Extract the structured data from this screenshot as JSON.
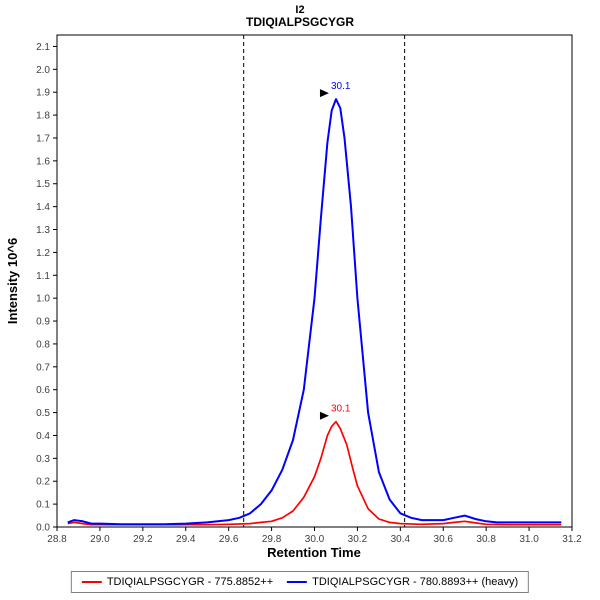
{
  "title": "I2",
  "subtitle": "TDIQIALPSGCYGR",
  "chart_data": {
    "type": "line",
    "title": "I2",
    "subtitle": "TDIQIALPSGCYGR",
    "xlabel": "Retention Time",
    "ylabel": "Intensity 10^6",
    "xlim": [
      28.8,
      31.2
    ],
    "ylim": [
      0,
      2.15
    ],
    "x_ticks": [
      28.8,
      29.0,
      29.2,
      29.4,
      29.6,
      29.8,
      30.0,
      30.2,
      30.4,
      30.6,
      30.8,
      31.0,
      31.2
    ],
    "y_ticks": [
      0.0,
      0.1,
      0.2,
      0.3,
      0.4,
      0.5,
      0.6,
      0.7,
      0.8,
      0.9,
      1.0,
      1.1,
      1.2,
      1.3,
      1.4,
      1.5,
      1.6,
      1.7,
      1.8,
      1.9,
      2.0,
      2.1
    ],
    "grid": false,
    "legend_position": "bottom",
    "integration_boundaries": [
      29.67,
      30.42
    ],
    "series": [
      {
        "name": "TDIQIALPSGCYGR - 775.8852++",
        "color": "#FF0000",
        "x": [
          28.85,
          28.88,
          28.92,
          28.96,
          29.0,
          29.1,
          29.2,
          29.3,
          29.4,
          29.5,
          29.6,
          29.7,
          29.75,
          29.8,
          29.85,
          29.9,
          29.95,
          30.0,
          30.03,
          30.06,
          30.08,
          30.1,
          30.12,
          30.15,
          30.18,
          30.2,
          30.25,
          30.3,
          30.35,
          30.4,
          30.5,
          30.6,
          30.65,
          30.7,
          30.75,
          30.8,
          30.9,
          31.0,
          31.1,
          31.15
        ],
        "y": [
          0.015,
          0.02,
          0.015,
          0.01,
          0.01,
          0.01,
          0.01,
          0.01,
          0.01,
          0.01,
          0.012,
          0.015,
          0.02,
          0.025,
          0.04,
          0.07,
          0.13,
          0.22,
          0.3,
          0.4,
          0.44,
          0.46,
          0.43,
          0.36,
          0.25,
          0.18,
          0.08,
          0.035,
          0.02,
          0.015,
          0.012,
          0.015,
          0.02,
          0.025,
          0.018,
          0.012,
          0.01,
          0.01,
          0.01,
          0.01
        ],
        "annotation": {
          "label": "30.1",
          "x": 30.1,
          "y": 0.46
        }
      },
      {
        "name": "TDIQIALPSGCYGR - 780.8893++ (heavy)",
        "color": "#0000FF",
        "x": [
          28.85,
          28.88,
          28.92,
          28.96,
          29.0,
          29.1,
          29.2,
          29.3,
          29.4,
          29.5,
          29.55,
          29.6,
          29.65,
          29.7,
          29.75,
          29.8,
          29.85,
          29.9,
          29.95,
          30.0,
          30.03,
          30.06,
          30.08,
          30.1,
          30.12,
          30.14,
          30.17,
          30.2,
          30.25,
          30.3,
          30.35,
          30.4,
          30.45,
          30.5,
          30.55,
          30.6,
          30.65,
          30.7,
          30.75,
          30.8,
          30.85,
          30.9,
          31.0,
          31.1,
          31.15
        ],
        "y": [
          0.02,
          0.03,
          0.025,
          0.015,
          0.015,
          0.012,
          0.012,
          0.012,
          0.015,
          0.02,
          0.025,
          0.03,
          0.04,
          0.06,
          0.1,
          0.16,
          0.25,
          0.38,
          0.6,
          1.0,
          1.35,
          1.68,
          1.82,
          1.87,
          1.83,
          1.7,
          1.4,
          1.0,
          0.5,
          0.24,
          0.12,
          0.06,
          0.04,
          0.03,
          0.03,
          0.03,
          0.04,
          0.05,
          0.035,
          0.025,
          0.02,
          0.02,
          0.02,
          0.02,
          0.02
        ],
        "annotation": {
          "label": "30.1",
          "x": 30.1,
          "y": 1.87
        }
      }
    ]
  },
  "legend": {
    "items": [
      {
        "label": "TDIQIALPSGCYGR - 775.8852++",
        "color": "#FF0000"
      },
      {
        "label": "TDIQIALPSGCYGR - 780.8893++ (heavy)",
        "color": "#0000FF"
      }
    ]
  },
  "colors": {
    "axis": "#000000",
    "tick_label": "#404040",
    "boundary": "#000000",
    "annotation_marker": "#000000"
  }
}
